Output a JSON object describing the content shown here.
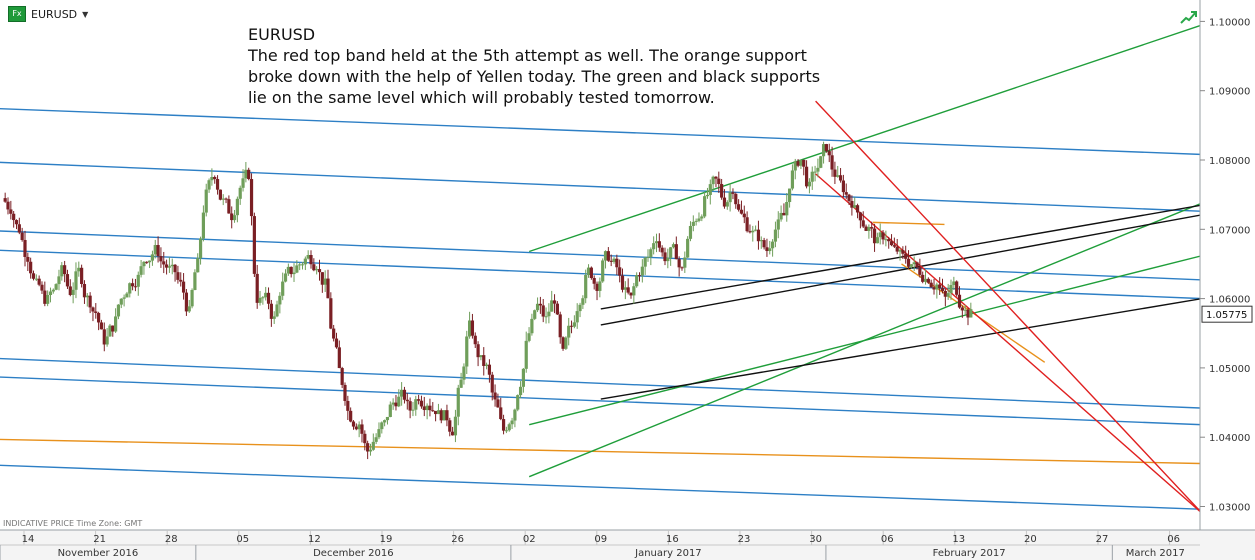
{
  "symbol": "EURUSD",
  "symbol_badge": "Fx",
  "comment_lines": [
    "EURUSD",
    "The red top band held at the 5th attempt as well. The orange support",
    "broke down with the help of Yellen today. The green and black supports",
    "lie on the same level which will probably tested tomorrow."
  ],
  "footer_note": "INDICATIVE PRICE   Time Zone: GMT",
  "colors": {
    "up_candle": "#6f9e5a",
    "down_candle": "#7a1f24",
    "blue_line": "#2d7fc5",
    "green_line": "#1f9e3a",
    "black_line": "#111111",
    "orange_line": "#e8911c",
    "red_line": "#e02020"
  },
  "chart_data": {
    "type": "candlestick",
    "instrument": "EURUSD",
    "ylim": [
      1.0285,
      1.1025
    ],
    "yticks": [
      "1.10000",
      "1.09000",
      "1.08000",
      "1.07000",
      "1.06000",
      "1.05000",
      "1.04000",
      "1.03000"
    ],
    "last_price": "1.05775",
    "day_labels": [
      {
        "label": "14",
        "day": 0
      },
      {
        "label": "21",
        "day": 5
      },
      {
        "label": "28",
        "day": 10
      },
      {
        "label": "05",
        "day": 15
      },
      {
        "label": "12",
        "day": 20
      },
      {
        "label": "19",
        "day": 25
      },
      {
        "label": "26",
        "day": 30
      },
      {
        "label": "02",
        "day": 35
      },
      {
        "label": "09",
        "day": 40
      },
      {
        "label": "16",
        "day": 45
      },
      {
        "label": "23",
        "day": 50
      },
      {
        "label": "30",
        "day": 55
      },
      {
        "label": "06",
        "day": 60
      },
      {
        "label": "13",
        "day": 65
      },
      {
        "label": "20",
        "day": 70
      },
      {
        "label": "27",
        "day": 75
      },
      {
        "label": "06",
        "day": 80
      }
    ],
    "month_labels": [
      {
        "label": "November 2016",
        "from": -3,
        "to": 12
      },
      {
        "label": "December 2016",
        "from": 12,
        "to": 34
      },
      {
        "label": "January 2017",
        "from": 34,
        "to": 56
      },
      {
        "label": "February 2017",
        "from": 56,
        "to": 76
      },
      {
        "label": "March 2017",
        "from": 76,
        "to": 82
      }
    ],
    "daily_closes": [
      1.073,
      1.07,
      1.066,
      1.062,
      1.06,
      1.061,
      1.064,
      1.061,
      1.064,
      1.06,
      1.058,
      1.054,
      1.056,
      1.06,
      1.062,
      1.063,
      1.066,
      1.067,
      1.065,
      1.064,
      1.062,
      1.058,
      1.065,
      1.075,
      1.078,
      1.074,
      1.072,
      1.076,
      1.078,
      1.06,
      1.06,
      1.057,
      1.062,
      1.064,
      1.065,
      1.066,
      1.065,
      1.062,
      1.054,
      1.048,
      1.043,
      1.042,
      1.038,
      1.04,
      1.042,
      1.045,
      1.046,
      1.044,
      1.046,
      1.045,
      1.044,
      1.043,
      1.041,
      1.048,
      1.056,
      1.052,
      1.05,
      1.045,
      1.041,
      1.043,
      1.048,
      1.055,
      1.059,
      1.057,
      1.06,
      1.052,
      1.056,
      1.06,
      1.064,
      1.062,
      1.066,
      1.065,
      1.062,
      1.06,
      1.064,
      1.066,
      1.069,
      1.066,
      1.067,
      1.064,
      1.07,
      1.072,
      1.075,
      1.077,
      1.074,
      1.076,
      1.072,
      1.07,
      1.069,
      1.067,
      1.07,
      1.072,
      1.078,
      1.08,
      1.076,
      1.079,
      1.082,
      1.078,
      1.076,
      1.074,
      1.072,
      1.07,
      1.068,
      1.069,
      1.067,
      1.066,
      1.065,
      1.064,
      1.063,
      1.062,
      1.06,
      1.062,
      1.059,
      1.0577
    ],
    "trendlines": [
      {
        "name": "blue",
        "points": [
          [
            -12,
            1.0882
          ],
          [
            82,
            1.0808
          ]
        ]
      },
      {
        "name": "blue",
        "points": [
          [
            -12,
            1.0805
          ],
          [
            82,
            1.0726
          ]
        ]
      },
      {
        "name": "blue",
        "points": [
          [
            -12,
            1.0706
          ],
          [
            82,
            1.0627
          ]
        ]
      },
      {
        "name": "blue",
        "points": [
          [
            -12,
            1.0678
          ],
          [
            82,
            1.06
          ]
        ]
      },
      {
        "name": "blue",
        "points": [
          [
            -12,
            1.0522
          ],
          [
            82,
            1.0442
          ]
        ]
      },
      {
        "name": "blue",
        "points": [
          [
            -12,
            1.0495
          ],
          [
            82,
            1.0418
          ]
        ]
      },
      {
        "name": "blue",
        "points": [
          [
            -12,
            1.0367
          ],
          [
            82,
            1.0296
          ]
        ]
      },
      {
        "name": "orange",
        "points": [
          [
            -17,
            1.0403
          ],
          [
            82,
            1.0362
          ]
        ]
      },
      {
        "name": "orange",
        "points": [
          [
            59,
            1.071
          ],
          [
            64,
            1.0707
          ]
        ]
      },
      {
        "name": "orange",
        "points": [
          [
            61,
            1.065
          ],
          [
            71,
            1.0508
          ]
        ]
      },
      {
        "name": "green",
        "points": [
          [
            35,
            1.0668
          ],
          [
            82,
            1.0995
          ]
        ]
      },
      {
        "name": "green",
        "points": [
          [
            35,
            1.0343
          ],
          [
            82,
            1.0738
          ]
        ]
      },
      {
        "name": "green",
        "points": [
          [
            35,
            1.0418
          ],
          [
            82,
            1.0662
          ]
        ]
      },
      {
        "name": "black",
        "points": [
          [
            40,
            1.0455
          ],
          [
            82,
            1.06
          ]
        ]
      },
      {
        "name": "black",
        "points": [
          [
            40,
            1.0562
          ],
          [
            82,
            1.0721
          ]
        ]
      },
      {
        "name": "black",
        "points": [
          [
            40,
            1.0585
          ],
          [
            82,
            1.0735
          ]
        ]
      },
      {
        "name": "red",
        "points": [
          [
            55,
            1.0885
          ],
          [
            82,
            1.029
          ]
        ]
      },
      {
        "name": "red",
        "points": [
          [
            55,
            1.078
          ],
          [
            82,
            1.029
          ]
        ]
      }
    ]
  }
}
